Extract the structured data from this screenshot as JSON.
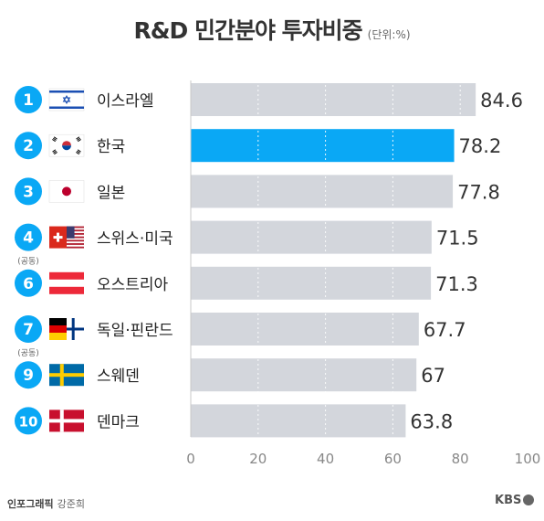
{
  "header": {
    "title": "R&D 민간분야 투자비중",
    "unit": "(단위:%)"
  },
  "footer": {
    "credit": "인포그래픽",
    "author": "강준희",
    "logo": "KBS"
  },
  "colors": {
    "bar": "#d3d6dc",
    "highlight": "#0aa8f5",
    "rank_circle": "#0aa8f5",
    "axis_text": "#888888"
  },
  "chart_data": {
    "type": "bar",
    "orientation": "horizontal",
    "title": "R&D 민간분야 투자비중",
    "unit": "%",
    "xlim": [
      0,
      100
    ],
    "xticks": [
      0,
      20,
      40,
      60,
      80,
      100
    ],
    "highlight": "한국",
    "categories": [
      "이스라엘",
      "한국",
      "일본",
      "스위스·미국",
      "오스트리아",
      "독일·핀란드",
      "스웨덴",
      "덴마크"
    ],
    "ranks": [
      "1",
      "2",
      "3",
      "4",
      "6",
      "7",
      "9",
      "10"
    ],
    "rank_notes": [
      "",
      "",
      "",
      "(공동)",
      "",
      "(공동)",
      "",
      ""
    ],
    "flags": [
      "israel-flag",
      "korea-flag",
      "japan-flag",
      "switzerland-usa-flag",
      "austria-flag",
      "germany-finland-flag",
      "sweden-flag",
      "denmark-flag"
    ],
    "values": [
      84.6,
      78.2,
      77.8,
      71.5,
      71.3,
      67.7,
      67,
      63.8
    ],
    "labels": [
      "84.6",
      "78.2",
      "77.8",
      "71.5",
      "71.3",
      "67.7",
      "67",
      "63.8"
    ]
  }
}
